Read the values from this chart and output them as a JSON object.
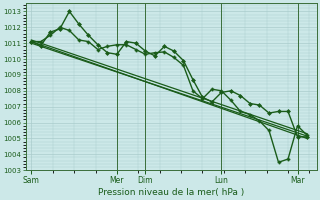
{
  "background_color": "#cce8e8",
  "grid_color": "#aacccc",
  "line_color": "#1a5c1a",
  "title": "Pression niveau de la mer( hPa )",
  "ylim": [
    1003.0,
    1013.5
  ],
  "yticks": [
    1003,
    1004,
    1005,
    1006,
    1007,
    1008,
    1009,
    1010,
    1011,
    1012,
    1013
  ],
  "x_day_labels": [
    {
      "label": "Sam",
      "x": 0.0
    },
    {
      "label": "Mer",
      "x": 4.5
    },
    {
      "label": "Dim",
      "x": 6.0
    },
    {
      "label": "Lun",
      "x": 10.0
    },
    {
      "label": "Mar",
      "x": 14.0
    }
  ],
  "xlim": [
    -0.3,
    15.0
  ],
  "vlines_x": [
    4.5,
    6.0,
    10.0,
    14.0
  ],
  "series": [
    {
      "x": [
        0,
        0.5,
        1.0,
        1.5,
        2.0,
        2.5,
        3.0,
        3.5,
        4.0,
        4.5,
        5.0,
        5.5,
        6.0,
        6.5,
        7.0,
        7.5,
        8.0,
        8.5,
        9.0,
        9.5,
        10.0,
        10.5,
        11.0,
        11.5,
        12.0,
        12.5,
        13.0,
        13.5,
        14.0,
        14.5
      ],
      "y": [
        1011.1,
        1010.85,
        1011.7,
        1011.9,
        1013.0,
        1012.2,
        1011.5,
        1010.9,
        1010.4,
        1010.3,
        1011.1,
        1011.0,
        1010.5,
        1010.2,
        1010.8,
        1010.5,
        1009.9,
        1008.7,
        1007.6,
        1007.3,
        1007.9,
        1008.0,
        1007.7,
        1007.2,
        1007.1,
        1006.6,
        1006.7,
        1006.7,
        1005.1,
        1005.1
      ],
      "marker": "D",
      "marker_size": 2.0,
      "linewidth": 1.0
    },
    {
      "x": [
        0,
        14.5
      ],
      "y": [
        1011.1,
        1005.0
      ],
      "marker": null,
      "linewidth": 0.9
    },
    {
      "x": [
        0,
        14.5
      ],
      "y": [
        1011.2,
        1005.3
      ],
      "marker": null,
      "linewidth": 0.9
    },
    {
      "x": [
        0,
        14.5
      ],
      "y": [
        1011.0,
        1005.15
      ],
      "marker": null,
      "linewidth": 0.9
    },
    {
      "x": [
        0,
        0.5,
        1.0,
        1.5,
        2.0,
        2.5,
        3.0,
        3.5,
        4.0,
        4.5,
        5.0,
        5.5,
        6.0,
        6.5,
        7.0,
        7.5,
        8.0,
        8.5,
        9.0,
        9.5,
        10.0,
        10.5,
        11.0,
        11.5,
        12.0,
        12.5,
        13.0,
        13.5,
        14.0,
        14.5
      ],
      "y": [
        1011.1,
        1011.1,
        1011.5,
        1012.0,
        1011.8,
        1011.2,
        1011.1,
        1010.6,
        1010.8,
        1010.9,
        1010.9,
        1010.6,
        1010.3,
        1010.4,
        1010.45,
        1010.1,
        1009.6,
        1008.0,
        1007.5,
        1008.1,
        1008.0,
        1007.4,
        1006.7,
        1006.5,
        1006.1,
        1005.5,
        1003.5,
        1003.7,
        1005.8,
        1005.2
      ],
      "marker": "P",
      "marker_size": 2.2,
      "linewidth": 1.0
    }
  ]
}
